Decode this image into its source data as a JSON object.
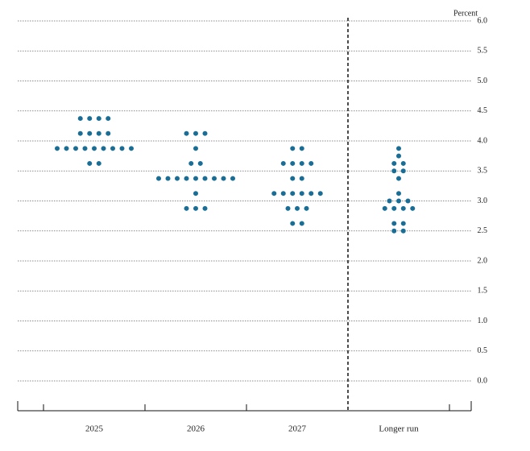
{
  "chart_data": {
    "type": "dot",
    "y_label": "Percent",
    "categories": [
      "2025",
      "2026",
      "2027",
      "Longer run"
    ],
    "dots": [
      [
        4.375,
        4.375,
        4.375,
        4.375,
        4.125,
        4.125,
        4.125,
        4.125,
        3.875,
        3.875,
        3.875,
        3.875,
        3.875,
        3.875,
        3.875,
        3.875,
        3.875,
        3.625,
        3.625
      ],
      [
        4.125,
        4.125,
        4.125,
        3.875,
        3.625,
        3.625,
        3.375,
        3.375,
        3.375,
        3.375,
        3.375,
        3.375,
        3.375,
        3.375,
        3.375,
        3.125,
        2.875,
        2.875,
        2.875
      ],
      [
        3.875,
        3.875,
        3.625,
        3.625,
        3.625,
        3.625,
        3.375,
        3.375,
        3.125,
        3.125,
        3.125,
        3.125,
        3.125,
        3.125,
        2.875,
        2.875,
        2.875,
        2.625,
        2.625
      ],
      [
        3.875,
        3.75,
        3.625,
        3.625,
        3.5,
        3.5,
        3.375,
        3.125,
        3.0,
        3.0,
        3.0,
        2.875,
        2.875,
        2.875,
        2.875,
        2.625,
        2.625,
        2.5,
        2.5
      ]
    ],
    "color": "#1a6e96",
    "ylim": [
      0,
      6
    ],
    "yticks": [
      {
        "value": 0,
        "label": "0.0"
      },
      0.5,
      {
        "value": 1,
        "label": "1.0"
      },
      1.5,
      {
        "value": 2,
        "label": "2.0"
      },
      2.5,
      {
        "value": 3,
        "label": "3.0"
      },
      3.5,
      {
        "value": 4,
        "label": "4.0"
      },
      4.5,
      {
        "value": 5,
        "label": "5.0"
      },
      5.5,
      {
        "value": 6,
        "label": "6.0"
      }
    ],
    "grid": true
  }
}
